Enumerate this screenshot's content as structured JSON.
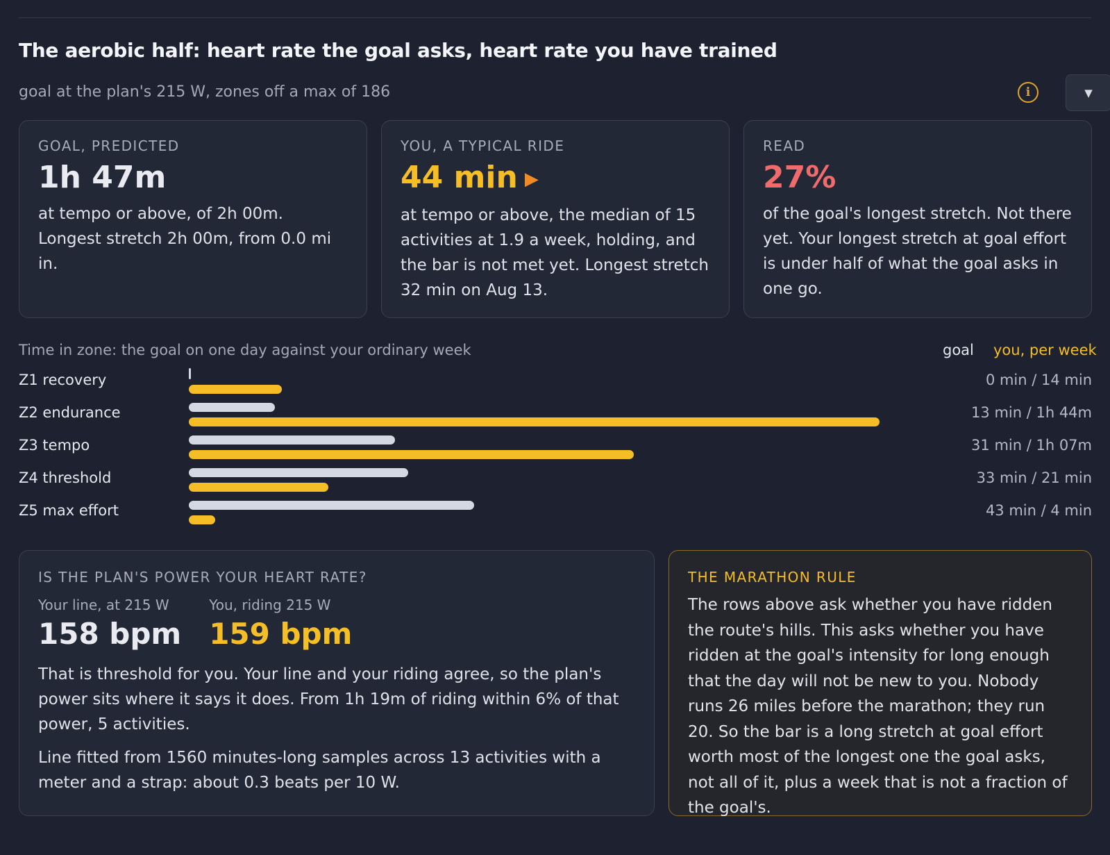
{
  "header": {
    "title": "The aerobic half: heart rate the goal asks, heart rate you have trained",
    "subtitle": "goal at the plan's 215 W, zones off a max of 186",
    "info_glyph": "i",
    "toggle_glyph": "▼"
  },
  "cards": [
    {
      "kicker": "GOAL, PREDICTED",
      "value": "1h 47m",
      "body": "at tempo or above, of 2h 00m. Longest stretch 2h 00m, from 0.0 mi in."
    },
    {
      "kicker": "YOU, A TYPICAL RIDE",
      "value": "44 min",
      "icon": "▶",
      "body": "at tempo or above, the median of 15 activities at 1.9 a week, holding, and the bar is not met yet. Longest stretch 32 min on Aug 13."
    },
    {
      "kicker": "READ",
      "value": "27%",
      "body": "of the goal's longest stretch. Not there yet. Your longest stretch at goal effort is under half of what the goal asks in one go."
    }
  ],
  "zones": {
    "caption": "Time in zone: the goal on one day against your ordinary week",
    "legend_goal": "goal",
    "legend_you": "you, per week",
    "rows": [
      {
        "label": "Z1 recovery",
        "value": "0 min / 14 min",
        "goal_min": 0,
        "you_min": 14
      },
      {
        "label": "Z2 endurance",
        "value": "13 min / 1h 44m",
        "goal_min": 13,
        "you_min": 104
      },
      {
        "label": "Z3 tempo",
        "value": "31 min / 1h 07m",
        "goal_min": 31,
        "you_min": 67
      },
      {
        "label": "Z4 threshold",
        "value": "33 min / 21 min",
        "goal_min": 33,
        "you_min": 21
      },
      {
        "label": "Z5 max effort",
        "value": "43 min / 4 min",
        "goal_min": 43,
        "you_min": 4
      }
    ]
  },
  "power": {
    "kicker": "IS THE PLAN'S POWER YOUR HEART RATE?",
    "line_label": "Your line, at 215 W",
    "line_value": "158 bpm",
    "you_label": "You, riding 215 W",
    "you_value": "159 bpm",
    "body": "That is threshold for you. Your line and your riding agree, so the plan's power sits where it says it does. From 1h 19m of riding within 6% of that power, 5 activities.",
    "body2": "Line fitted from 1560 minutes-long samples across 13 activities with a meter and a strap: about 0.3 beats per 10 W."
  },
  "rule": {
    "kicker": "THE MARATHON RULE",
    "body": "The rows above ask whether you have ridden the route's hills. This asks whether you have ridden at the goal's intensity for long enough that the day will not be new to you. Nobody runs 26 miles before the marathon; they run 20. So the bar is a long stretch at goal effort worth most of the longest one the goal asks, not all of it, plus a week that is not a fraction of the goal's."
  },
  "colors": {
    "goal_bar": "#d4d8e2",
    "you_bar": "#f5bd26",
    "accent_amber": "#f5bd26",
    "accent_coral": "#f06c6c"
  }
}
